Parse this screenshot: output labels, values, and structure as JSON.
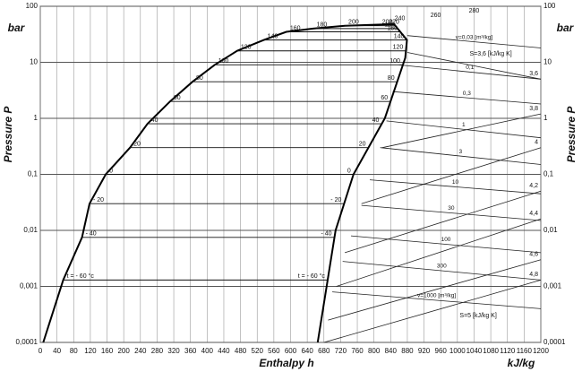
{
  "chart_data": {
    "type": "line",
    "y_label": "Pressure P",
    "y_unit": "bar",
    "x_label": "Enthalpy h",
    "x_unit": "kJ/kg",
    "log_y": true,
    "grid": true,
    "xlim": [
      0,
      1200
    ],
    "xticks": [
      0,
      40,
      80,
      120,
      160,
      200,
      240,
      280,
      320,
      360,
      400,
      440,
      480,
      520,
      560,
      600,
      640,
      680,
      720,
      760,
      800,
      840,
      880,
      920,
      960,
      1000,
      1040,
      1080,
      1120,
      1160,
      1200
    ],
    "ylim": [
      0.0001,
      100
    ],
    "yticks": [
      {
        "value": 0.0001,
        "label": "0,0001"
      },
      {
        "value": 0.001,
        "label": "0,001"
      },
      {
        "value": 0.01,
        "label": "0,01"
      },
      {
        "value": 0.1,
        "label": "0,1"
      },
      1,
      10,
      100
    ],
    "series": [
      {
        "color": "#000000",
        "x": [
          7,
          55,
          100,
          118,
          157,
          215,
          257,
          311,
          365,
          418,
          472,
          536,
          590,
          654,
          730,
          848,
          879,
          875,
          826,
          751,
          708,
          665
        ],
        "values": [
          0.0001,
          0.0013,
          0.0075,
          0.03,
          0.1,
          0.3,
          0.8,
          2,
          4.5,
          9,
          16,
          25,
          35,
          40,
          45,
          48,
          25,
          12,
          1,
          0.1,
          0.01,
          0.0001
        ]
      }
    ],
    "isotherms": {
      "labels": [
        "t = - 60 °c",
        "- 40",
        "- 20",
        "0",
        "20",
        "40",
        "60",
        "80",
        "100",
        "120",
        "140",
        "160",
        "180",
        "200"
      ],
      "values": [
        0.0013,
        0.0075,
        0.03,
        0.1,
        0.3,
        0.8,
        2,
        4.5,
        9,
        16,
        25,
        35,
        40,
        45
      ]
    },
    "isentropes": [
      {
        "label": "3,6",
        "x": [
          880,
          1200
        ],
        "values": [
          15,
          5
        ]
      },
      {
        "label": "3,8",
        "x": [
          820,
          1200
        ],
        "values": [
          0.3,
          1.2
        ]
      },
      {
        "label": "4",
        "x": [
          770,
          1200
        ],
        "values": [
          0.03,
          0.3
        ]
      },
      {
        "label": "4,2",
        "x": [
          730,
          1200
        ],
        "values": [
          0.004,
          0.05
        ]
      },
      {
        "label": "4,4",
        "x": [
          710,
          1200
        ],
        "values": [
          0.001,
          0.016
        ]
      },
      {
        "label": "4,6",
        "x": [
          690,
          1200
        ],
        "values": [
          0.00025,
          0.003
        ]
      },
      {
        "label": "4,8",
        "x": [
          680,
          1200
        ],
        "values": [
          0.0001,
          0.0013
        ]
      }
    ],
    "isochores": [
      {
        "label": "v=0,03 [m³/kg]",
        "x": [
          880,
          1200
        ],
        "values": [
          30,
          18
        ]
      },
      {
        "label": "0,1",
        "x": [
          860,
          1200
        ],
        "values": [
          9,
          5
        ]
      },
      {
        "label": "0,3",
        "x": [
          845,
          1200
        ],
        "values": [
          3,
          1.8
        ]
      },
      {
        "label": "1",
        "x": [
          830,
          1200
        ],
        "values": [
          0.9,
          0.45
        ]
      },
      {
        "label": "3",
        "x": [
          815,
          1200
        ],
        "values": [
          0.3,
          0.15
        ]
      },
      {
        "label": "10",
        "x": [
          790,
          1200
        ],
        "values": [
          0.08,
          0.045
        ]
      },
      {
        "label": "30",
        "x": [
          770,
          1200
        ],
        "values": [
          0.028,
          0.015
        ]
      },
      {
        "label": "100",
        "x": [
          745,
          1200
        ],
        "values": [
          0.008,
          0.004
        ]
      },
      {
        "label": "300",
        "x": [
          725,
          1200
        ],
        "values": [
          0.0028,
          0.0013
        ]
      },
      {
        "label": "v=1000 [m³/kg]",
        "x": [
          700,
          1200
        ],
        "values": [
          0.0008,
          0.0004
        ]
      }
    ],
    "annotations": [
      {
        "text": "220",
        "x": 848,
        "y": 52
      },
      {
        "text": "240",
        "x": 862,
        "y": 60
      },
      {
        "text": "260",
        "x": 948,
        "y": 69
      },
      {
        "text": "280",
        "x": 1040,
        "y": 83
      },
      {
        "text": "S=3,6 [kJ/kg K]",
        "x": 1080,
        "y": 14
      },
      {
        "text": "S=5 [kJ/kg K]",
        "x": 1050,
        "y": 0.0003
      }
    ]
  }
}
